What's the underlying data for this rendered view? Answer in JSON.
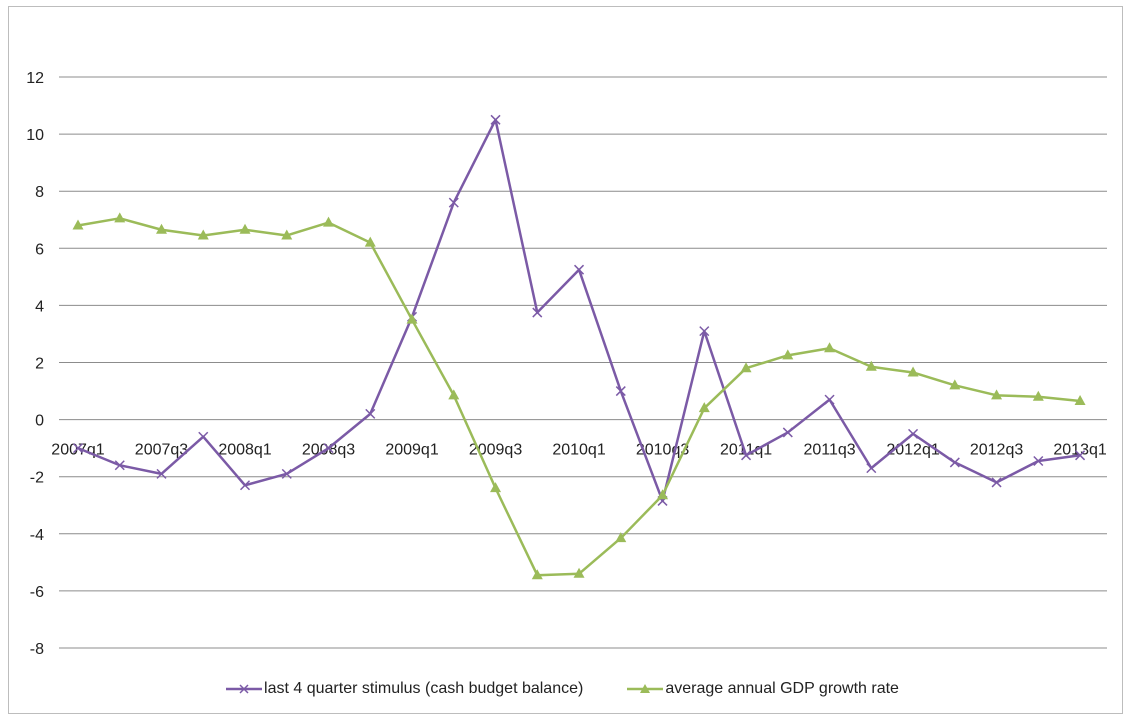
{
  "chart_data": {
    "type": "line",
    "categories": [
      "2007q1",
      "2007q2",
      "2007q3",
      "2007q4",
      "2008q1",
      "2008q2",
      "2008q3",
      "2008q4",
      "2009q1",
      "2009q2",
      "2009q3",
      "2009q4",
      "2010q1",
      "2010q2",
      "2010q3",
      "2010q4",
      "2011q1",
      "2011q2",
      "2011q3",
      "2011q4",
      "2012q1",
      "2012q2",
      "2012q3",
      "2012q4",
      "2013q1"
    ],
    "tick_labels": [
      "2007q1",
      "2007q3",
      "2008q1",
      "2008q3",
      "2009q1",
      "2009q3",
      "2010q1",
      "2010q3",
      "2011q1",
      "2011q3",
      "2012q1",
      "2012q3",
      "2013q1"
    ],
    "ylim": [
      -8,
      12
    ],
    "yticks": [
      -8,
      -6,
      -4,
      -2,
      0,
      2,
      4,
      6,
      8,
      10,
      12
    ],
    "grid": true,
    "legend_position": "bottom",
    "series": [
      {
        "name": "last 4 quarter stimulus (cash budget balance)",
        "color": "#7b5aa6",
        "marker": "x",
        "values": [
          -1.0,
          -1.6,
          -1.9,
          -0.6,
          -2.3,
          -1.9,
          -1.0,
          0.2,
          3.6,
          7.6,
          10.5,
          3.75,
          5.25,
          1.0,
          -2.85,
          3.1,
          -1.25,
          -0.45,
          0.7,
          -1.7,
          -0.5,
          -1.5,
          -2.2,
          -1.45,
          -1.25
        ]
      },
      {
        "name": "average annual GDP growth rate",
        "color": "#9bbb59",
        "marker": "triangle",
        "values": [
          6.8,
          7.05,
          6.65,
          6.45,
          6.65,
          6.45,
          6.9,
          6.2,
          3.5,
          0.85,
          -2.4,
          -5.45,
          -5.4,
          -4.15,
          -2.65,
          0.4,
          1.8,
          2.25,
          2.5,
          1.85,
          1.65,
          1.2,
          0.85,
          0.8,
          0.65
        ]
      }
    ]
  }
}
